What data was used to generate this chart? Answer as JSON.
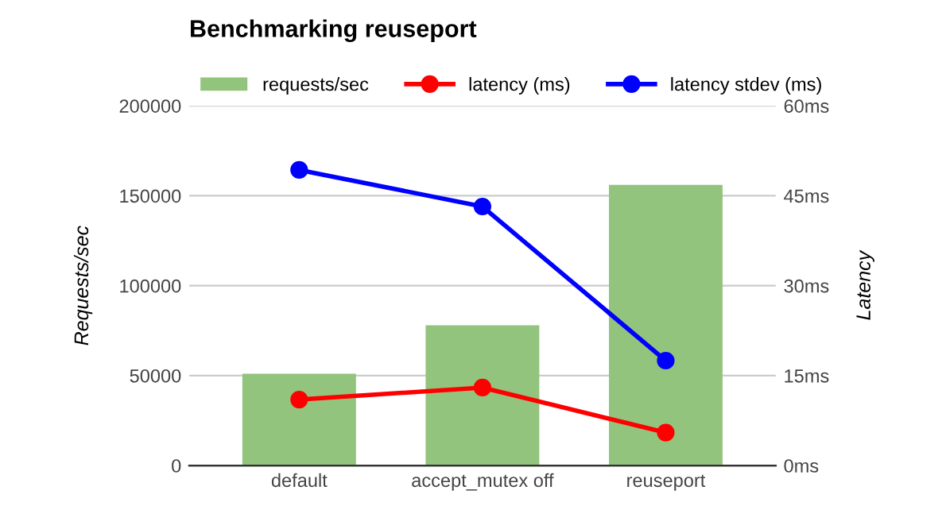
{
  "chart_data": {
    "type": "bar",
    "title": "Benchmarking reuseport",
    "ylabel": "Requests/sec",
    "y2label": "Latency",
    "categories": [
      "default",
      "accept_mutex off",
      "reuseport"
    ],
    "series": [
      {
        "name": "requests/sec",
        "color": "#93c47d",
        "values": [
          51000,
          78000,
          156000
        ]
      },
      {
        "name": "latency (ms)",
        "type": "line",
        "axis": "y2",
        "color": "#ff0000",
        "values": [
          11.0,
          13.0,
          5.5
        ]
      },
      {
        "name": "latency stdev (ms)",
        "type": "line",
        "axis": "y2",
        "color": "#0000ff",
        "values": [
          49.3,
          43.2,
          17.5
        ]
      }
    ],
    "ylim": [
      0,
      200000
    ],
    "yticks": [
      0,
      50000,
      100000,
      150000,
      200000
    ],
    "y2lim": [
      0,
      60
    ],
    "y2ticks": [
      {
        "value": 0,
        "label": "0ms"
      },
      {
        "value": 15,
        "label": "15ms"
      },
      {
        "value": 30,
        "label": "30ms"
      },
      {
        "value": 45,
        "label": "45ms"
      },
      {
        "value": 60,
        "label": "60ms"
      }
    ],
    "grid": "y",
    "legend": "top left",
    "marker": "circle",
    "line_style": "solid"
  }
}
